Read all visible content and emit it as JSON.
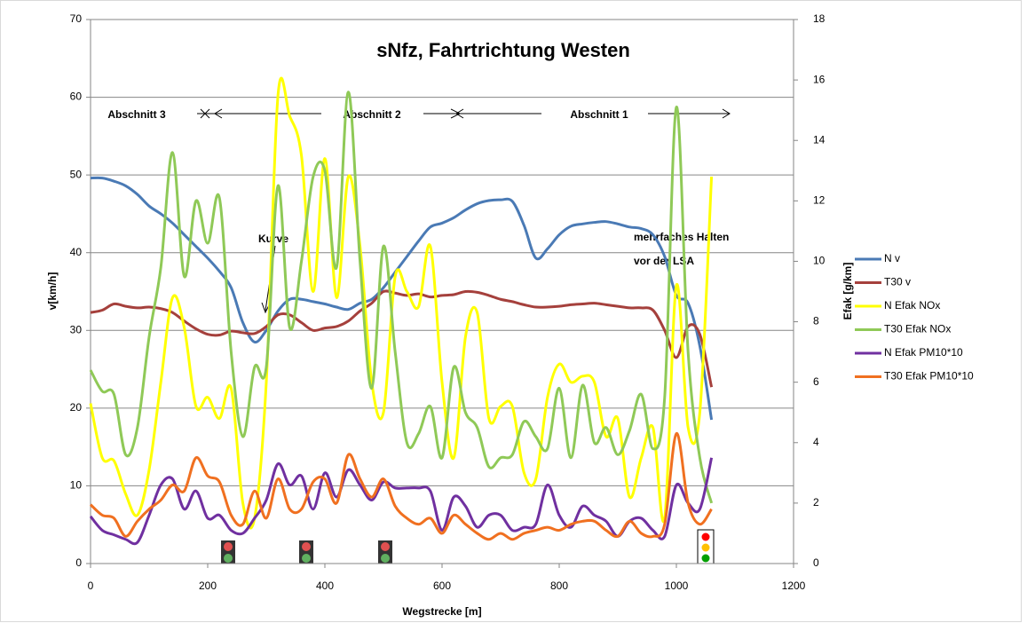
{
  "chart_data": {
    "type": "line",
    "title": "sNfz, Fahrtrichtung Westen",
    "x_label": "Wegstrecke  [m]",
    "y_label": "v[km/h]",
    "y2_label": "Efak [g/km]",
    "annotations": [
      "Abschnitt 3",
      "Abschnitt 2",
      "Abschnitt 1",
      "Kurve",
      "mehrfaches Halten",
      "vor der LSA"
    ],
    "xlim": [
      0,
      1200
    ],
    "xticks": [
      0,
      200,
      400,
      600,
      800,
      1000,
      1200
    ],
    "ylim": [
      0,
      70
    ],
    "yticks": [
      0,
      10,
      20,
      30,
      40,
      50,
      60,
      70
    ],
    "y2lim": [
      0,
      18
    ],
    "y2ticks": [
      0,
      2,
      4,
      6,
      8,
      10,
      12,
      14,
      16,
      18
    ],
    "grid": true,
    "legend": "right",
    "x": [
      0,
      20,
      40,
      60,
      80,
      100,
      120,
      140,
      160,
      180,
      200,
      220,
      240,
      260,
      280,
      300,
      320,
      340,
      360,
      380,
      400,
      420,
      440,
      460,
      480,
      500,
      520,
      540,
      560,
      580,
      600,
      620,
      640,
      660,
      680,
      700,
      720,
      740,
      760,
      780,
      800,
      820,
      840,
      860,
      880,
      900,
      920,
      940,
      960,
      980,
      1000,
      1020,
      1040,
      1060
    ],
    "series": [
      {
        "name": "N v",
        "color": "#4a7ab5",
        "values": [
          49.6,
          49.6,
          49.2,
          48.6,
          47.5,
          46,
          45,
          43.8,
          42.3,
          40.8,
          39.3,
          37.6,
          35.5,
          31,
          28.5,
          30,
          32.5,
          34,
          34,
          33.7,
          33.4,
          33,
          32.7,
          33.5,
          34,
          35.5,
          37.5,
          39.5,
          41.5,
          43.3,
          43.8,
          44.5,
          45.5,
          46.3,
          46.7,
          46.8,
          46.6,
          43.5,
          39.3,
          40.5,
          42.3,
          43.4,
          43.7,
          43.9,
          44,
          43.7,
          43.3,
          43.1,
          42.3,
          39.5,
          34.5,
          33.5,
          28,
          18.5
        ]
      },
      {
        "name": "T30 v",
        "color": "#a5403c",
        "values": [
          32.3,
          32.6,
          33.4,
          33.1,
          32.9,
          33,
          32.8,
          32.3,
          31.2,
          30.2,
          29.5,
          29.4,
          29.9,
          29.7,
          29.6,
          30.5,
          32,
          32,
          31,
          30,
          30.3,
          30.5,
          31.2,
          32.5,
          33.5,
          35,
          34.8,
          34.5,
          34.7,
          34.3,
          34.5,
          34.6,
          35,
          34.9,
          34.5,
          34,
          33.7,
          33.3,
          33,
          33,
          33.1,
          33.3,
          33.4,
          33.5,
          33.3,
          33.1,
          32.9,
          32.9,
          32.6,
          30,
          26.5,
          30.5,
          29.5,
          22.7
        ]
      },
      {
        "name": "N Efak NOx",
        "color": "#ffff00",
        "axis": "y2",
        "values": [
          5.3,
          3.5,
          3.4,
          2.3,
          1.6,
          3.1,
          6,
          8.8,
          7.8,
          5.2,
          5.5,
          4.8,
          5.8,
          2,
          1.5,
          6,
          15.5,
          14.8,
          13.5,
          9,
          13.4,
          8.8,
          12.8,
          10.5,
          6,
          5,
          9.5,
          9,
          8.5,
          10.5,
          6,
          3.5,
          7.5,
          8.3,
          4.8,
          5.2,
          5.2,
          3,
          2.8,
          5.5,
          6.6,
          6,
          6.2,
          6,
          4.2,
          4.8,
          2.2,
          3.5,
          4.5,
          1.5,
          9.2,
          4.5,
          5,
          12.8
        ]
      },
      {
        "name": "T30  Efak NOx",
        "color": "#8fc957",
        "axis": "y2",
        "values": [
          6.4,
          5.7,
          5.6,
          3.6,
          4.5,
          7.5,
          9.8,
          13.6,
          9.5,
          12,
          10.6,
          12.1,
          7,
          4.2,
          6.5,
          6.5,
          12.5,
          7.8,
          10,
          12.8,
          13,
          9.8,
          15.6,
          10,
          5.8,
          10.5,
          7,
          4,
          4.3,
          5.2,
          3.5,
          6.5,
          5,
          4.5,
          3.2,
          3.5,
          3.6,
          4.7,
          4.2,
          3.8,
          5.8,
          3.5,
          5.9,
          4,
          4.5,
          3.6,
          4.4,
          5.6,
          3.8,
          5.5,
          15.1,
          7,
          3.5,
          2
        ]
      },
      {
        "name": "N Efak PM10*10",
        "color": "#7030a0",
        "axis": "y2",
        "values": [
          1.56,
          1.1,
          0.95,
          0.8,
          0.7,
          1.6,
          2.6,
          2.8,
          1.8,
          2.4,
          1.5,
          1.6,
          1.1,
          1,
          1.5,
          2.1,
          3.3,
          2.6,
          2.9,
          1.8,
          3,
          2.2,
          3.1,
          2.6,
          2.1,
          2.7,
          2.5,
          2.5,
          2.5,
          2.4,
          1.1,
          2.2,
          1.9,
          1.2,
          1.6,
          1.6,
          1.1,
          1.2,
          1.3,
          2.6,
          1.6,
          1.2,
          1.9,
          1.6,
          1.4,
          0.9,
          1.4,
          1.5,
          1.1,
          0.9,
          2.6,
          2,
          1.8,
          3.5
        ]
      },
      {
        "name": "T30 Efak PM10*10",
        "color": "#f07020",
        "axis": "y2",
        "values": [
          1.95,
          1.6,
          1.5,
          0.9,
          1.4,
          1.8,
          2.1,
          2.6,
          2.4,
          3.5,
          2.9,
          2.7,
          1.6,
          1.3,
          2.4,
          1.5,
          2.8,
          1.8,
          1.8,
          2.7,
          2.8,
          2,
          3.6,
          2.8,
          2.2,
          2.8,
          1.9,
          1.5,
          1.3,
          1.5,
          1,
          1.6,
          1.3,
          1,
          0.8,
          1,
          0.8,
          1,
          1.1,
          1.2,
          1.1,
          1.3,
          1.4,
          1.4,
          1.1,
          0.9,
          1.4,
          1,
          0.9,
          1.3,
          4.3,
          2,
          1.3,
          1.8
        ]
      }
    ]
  }
}
